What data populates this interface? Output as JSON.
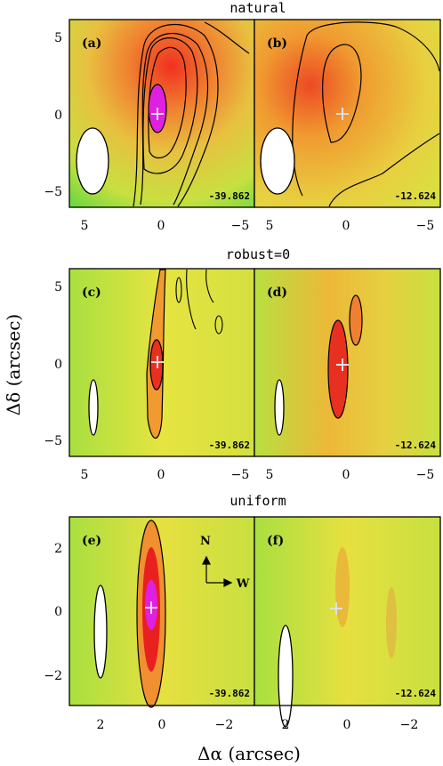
{
  "figure": {
    "row_titles": [
      "natural",
      "robust=0",
      "uniform"
    ],
    "ylabel": "Δδ (arcsec)",
    "xlabel": "Δα (arcsec)",
    "compass": {
      "north": "N",
      "west": "W"
    }
  },
  "panels": [
    {
      "label": "(a)",
      "value": "-39.862"
    },
    {
      "label": "(b)",
      "value": "-12.624"
    },
    {
      "label": "(c)",
      "value": "-39.862"
    },
    {
      "label": "(d)",
      "value": "-12.624"
    },
    {
      "label": "(e)",
      "value": "-39.862"
    },
    {
      "label": "(f)",
      "value": "-12.624"
    }
  ],
  "ticks": {
    "rows12": {
      "x": [
        "5",
        "0",
        "−5"
      ],
      "y": [
        "5",
        "0",
        "−5"
      ]
    },
    "row3": {
      "x": [
        "2",
        "0",
        "−2"
      ],
      "y": [
        "2",
        "0",
        "−2"
      ]
    }
  },
  "colors": {
    "green": "#3ccf3c",
    "yellow": "#e8e24a",
    "orange": "#f0a030",
    "red": "#e82020",
    "magenta": "#e020e0"
  }
}
